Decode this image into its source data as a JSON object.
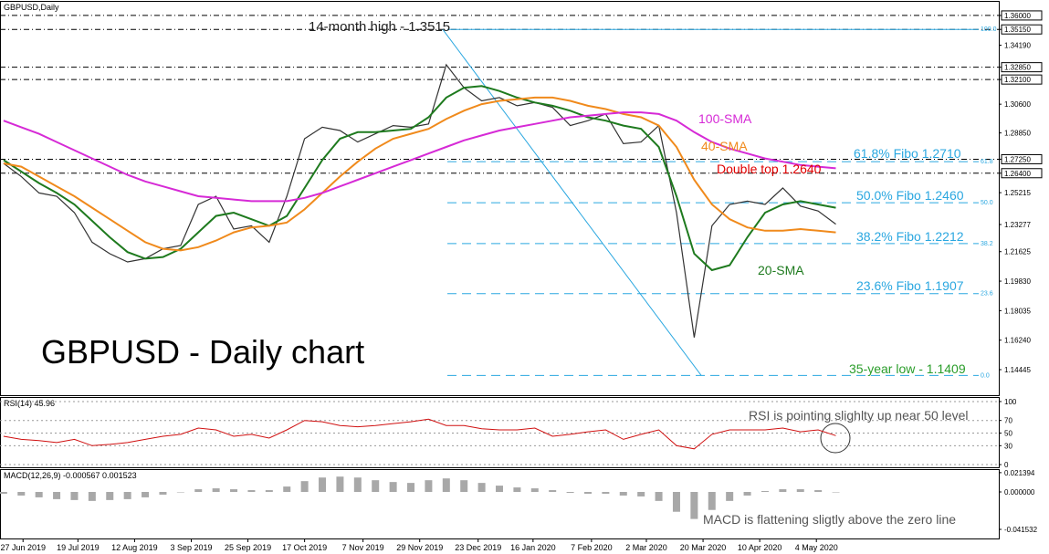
{
  "chart_data": [
    {
      "type": "line",
      "title": "GBPUSD,Daily",
      "x": [
        0,
        1,
        2,
        3,
        4,
        5,
        6,
        7,
        8,
        9,
        10,
        11,
        12,
        13,
        14,
        15,
        16,
        17,
        18,
        19,
        20,
        21,
        22,
        23,
        24,
        25,
        26,
        27,
        28,
        29,
        30,
        31,
        32,
        33,
        34,
        35,
        36,
        37,
        38,
        39,
        40,
        41,
        42,
        43,
        44,
        45,
        46,
        47
      ],
      "xlim": [
        -0.2,
        56.2
      ],
      "xticks": [
        {
          "value": 1.1,
          "label": "27 Jun 2019"
        },
        {
          "value": 4.2,
          "label": "19 Jul 2019"
        },
        {
          "value": 7.4,
          "label": "12 Aug 2019"
        },
        {
          "value": 10.6,
          "label": "3 Sep 2019"
        },
        {
          "value": 13.8,
          "label": "25 Sep 2019"
        },
        {
          "value": 17.0,
          "label": "17 Oct 2019"
        },
        {
          "value": 20.3,
          "label": "7 Nov 2019"
        },
        {
          "value": 23.5,
          "label": "29 Nov 2019"
        },
        {
          "value": 26.8,
          "label": "23 Dec 2019"
        },
        {
          "value": 29.9,
          "label": "16 Jan 2020"
        },
        {
          "value": 33.2,
          "label": "7 Feb 2020"
        },
        {
          "value": 36.3,
          "label": "2 Mar 2020"
        },
        {
          "value": 39.5,
          "label": "20 Mar 2020"
        },
        {
          "value": 42.7,
          "label": "10 Apr 2020"
        },
        {
          "value": 45.9,
          "label": "4 May 2020"
        }
      ],
      "ylim": [
        1.1289,
        1.3694
      ],
      "yticks": [
        {
          "value": 1.36,
          "label": "1.36000"
        },
        {
          "value": 1.3515,
          "label": "1.35150"
        },
        {
          "value": 1.3419,
          "label": "1.34190"
        },
        {
          "value": 1.3285,
          "label": "1.32850"
        },
        {
          "value": 1.321,
          "label": "1.32100"
        },
        {
          "value": 1.306,
          "label": "1.30600"
        },
        {
          "value": 1.2885,
          "label": "1.28850"
        },
        {
          "value": 1.2725,
          "label": "1.27250"
        },
        {
          "value": 1.264,
          "label": "1.26400"
        },
        1.25215,
        1.23277,
        1.21625,
        {
          "value": 1.1983,
          "label": "1.19830"
        },
        1.18035,
        {
          "value": 1.1624,
          "label": "1.16240"
        },
        1.14445
      ],
      "level_lines": [
        1.36,
        1.3515,
        1.3285,
        1.321,
        1.2725,
        1.264
      ],
      "fibo_levels": [
        {
          "value": 1.3515,
          "label": "100.0"
        },
        {
          "value": 1.271,
          "label": "61.8"
        },
        {
          "value": 1.246,
          "label": "50.0"
        },
        {
          "value": 1.2212,
          "label": "38.2"
        },
        {
          "value": 1.1907,
          "label": "23.6"
        },
        {
          "value": 1.1409,
          "label": "0.0"
        }
      ],
      "trendline": {
        "x": [
          24.8,
          39.4
        ],
        "values": [
          1.3515,
          1.1409
        ],
        "color": "#2aa7e0"
      },
      "series": [
        {
          "color": "#333333",
          "values": [
            1.27,
            1.262,
            1.252,
            1.25,
            1.24,
            1.222,
            1.215,
            1.21,
            1.212,
            1.218,
            1.22,
            1.245,
            1.25,
            1.23,
            1.232,
            1.222,
            1.25,
            1.285,
            1.292,
            1.29,
            1.283,
            1.288,
            1.293,
            1.292,
            1.294,
            1.33,
            1.316,
            1.308,
            1.31,
            1.305,
            1.307,
            1.304,
            1.293,
            1.296,
            1.3,
            1.282,
            1.283,
            1.293,
            1.24,
            1.164,
            1.232,
            1.245,
            1.247,
            1.245,
            1.255,
            1.244,
            1.241,
            1.233
          ]
        },
        {
          "name": "20-SMA",
          "color": "#1e7a1e",
          "values": [
            1.272,
            1.265,
            1.258,
            1.252,
            1.245,
            1.235,
            1.225,
            1.216,
            1.212,
            1.213,
            1.218,
            1.228,
            1.238,
            1.24,
            1.236,
            1.232,
            1.238,
            1.255,
            1.272,
            1.285,
            1.289,
            1.289,
            1.29,
            1.291,
            1.298,
            1.31,
            1.316,
            1.317,
            1.314,
            1.31,
            1.307,
            1.305,
            1.302,
            1.298,
            1.296,
            1.293,
            1.291,
            1.28,
            1.25,
            1.215,
            1.205,
            1.208,
            1.225,
            1.24,
            1.245,
            1.247,
            1.245,
            1.243
          ]
        },
        {
          "name": "40-SMA",
          "color": "#f08a1c",
          "values": [
            1.27,
            1.268,
            1.262,
            1.256,
            1.25,
            1.243,
            1.236,
            1.229,
            1.222,
            1.218,
            1.217,
            1.219,
            1.223,
            1.228,
            1.231,
            1.232,
            1.234,
            1.242,
            1.252,
            1.262,
            1.271,
            1.279,
            1.285,
            1.288,
            1.291,
            1.297,
            1.302,
            1.306,
            1.308,
            1.309,
            1.31,
            1.31,
            1.308,
            1.305,
            1.303,
            1.3,
            1.298,
            1.293,
            1.28,
            1.26,
            1.245,
            1.236,
            1.231,
            1.229,
            1.229,
            1.23,
            1.229,
            1.228
          ]
        },
        {
          "name": "100-SMA",
          "color": "#d62ad6",
          "values": [
            1.296,
            1.292,
            1.288,
            1.283,
            1.278,
            1.273,
            1.268,
            1.263,
            1.259,
            1.256,
            1.253,
            1.25,
            1.249,
            1.248,
            1.247,
            1.247,
            1.247,
            1.249,
            1.252,
            1.256,
            1.26,
            1.264,
            1.268,
            1.272,
            1.276,
            1.28,
            1.284,
            1.287,
            1.29,
            1.292,
            1.294,
            1.296,
            1.298,
            1.299,
            1.3,
            1.301,
            1.301,
            1.3,
            1.296,
            1.289,
            1.283,
            1.279,
            1.276,
            1.273,
            1.271,
            1.269,
            1.268,
            1.267
          ]
        }
      ],
      "annotations": [
        "14-month high - 1.3515",
        "61.8% Fibo 1.2710",
        "Double top 1.2640",
        "50.0% Fibo 1.2460",
        "38.2% Fibo 1.2212",
        "23.6% Fibo 1.1907",
        "35-year low - 1.1409",
        "GBPUSD - Daily chart"
      ]
    },
    {
      "type": "line",
      "title": "RSI(14) 45.96",
      "color": "#d01010",
      "values": [
        45,
        40,
        38,
        35,
        40,
        30,
        32,
        35,
        40,
        45,
        48,
        58,
        55,
        45,
        48,
        42,
        55,
        70,
        68,
        62,
        60,
        62,
        65,
        68,
        72,
        62,
        62,
        57,
        55,
        55,
        58,
        45,
        48,
        52,
        55,
        40,
        48,
        55,
        30,
        25,
        48,
        55,
        55,
        55,
        58,
        52,
        55,
        46
      ],
      "ylim": [
        -4.3,
        107.2
      ],
      "yticks": [
        100,
        70,
        50,
        30,
        0
      ],
      "grid": true,
      "annotations": [
        "RSI is pointing slighlty up near 50 level"
      ]
    },
    {
      "type": "bar",
      "title": "MACD(12,26,9) -0.000567 0.001523",
      "color": "#a8a8a8",
      "values": [
        -0.002,
        -0.004,
        -0.006,
        -0.008,
        -0.009,
        -0.01,
        -0.009,
        -0.008,
        -0.006,
        -0.003,
        0.0,
        0.003,
        0.004,
        0.003,
        0.002,
        0.002,
        0.006,
        0.012,
        0.016,
        0.017,
        0.016,
        0.013,
        0.011,
        0.01,
        0.013,
        0.015,
        0.013,
        0.01,
        0.007,
        0.005,
        0.004,
        0.002,
        -0.001,
        -0.002,
        -0.002,
        -0.004,
        -0.005,
        -0.01,
        -0.022,
        -0.03,
        -0.02,
        -0.01,
        -0.004,
        0.001,
        0.003,
        0.003,
        0.002,
        0.0
      ],
      "ylim": [
        -0.05167,
        0.02533
      ],
      "yticks": [
        0.021394,
        {
          "value": 0,
          "label": "0.000000"
        },
        -0.041532
      ],
      "annotations": [
        "MACD is flattening sligtly above the zero line"
      ]
    }
  ]
}
